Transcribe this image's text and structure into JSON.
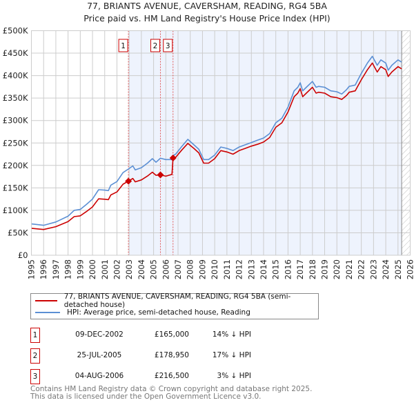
{
  "chart_data": {
    "type": "line",
    "title": "77, BRIANTS AVENUE, CAVERSHAM, READING, RG4 5BA",
    "subtitle": "Price paid vs. HM Land Registry's House Price Index (HPI)",
    "xlabel": "",
    "ylabel": "",
    "xlim": [
      1995,
      2026
    ],
    "ylim": [
      0,
      500000
    ],
    "grid": true,
    "x_ticks": [
      "1995",
      "1996",
      "1997",
      "1998",
      "1999",
      "2000",
      "2001",
      "2002",
      "2003",
      "2004",
      "2005",
      "2006",
      "2007",
      "2008",
      "2009",
      "2010",
      "2011",
      "2012",
      "2013",
      "2014",
      "2015",
      "2016",
      "2017",
      "2018",
      "2019",
      "2020",
      "2021",
      "2022",
      "2023",
      "2024",
      "2025",
      "2026"
    ],
    "y_ticks": [
      {
        "v": 0,
        "label": "£0"
      },
      {
        "v": 50000,
        "label": "£50K"
      },
      {
        "v": 100000,
        "label": "£100K"
      },
      {
        "v": 150000,
        "label": "£150K"
      },
      {
        "v": 200000,
        "label": "£200K"
      },
      {
        "v": 250000,
        "label": "£250K"
      },
      {
        "v": 300000,
        "label": "£300K"
      },
      {
        "v": 350000,
        "label": "£350K"
      },
      {
        "v": 400000,
        "label": "£400K"
      },
      {
        "v": 450000,
        "label": "£450K"
      },
      {
        "v": 500000,
        "label": "£500K"
      }
    ],
    "x": [
      1995,
      1996,
      1997,
      1998,
      1998.5,
      1999,
      1999.5,
      2000,
      2000.5,
      2001,
      2001.3,
      2001.5,
      2002,
      2002.5,
      2002.94,
      2003.3,
      2003.5,
      2004,
      2004.5,
      2004.9,
      2005.2,
      2005.56,
      2006,
      2006.5,
      2006.59,
      2006.8,
      2007.3,
      2007.8,
      2008.3,
      2008.7,
      2009.1,
      2009.5,
      2010,
      2010.5,
      2011,
      2011.5,
      2012,
      2012.5,
      2013,
      2013.5,
      2014,
      2014.5,
      2015,
      2015.5,
      2016,
      2016.5,
      2016.8,
      2017,
      2017.2,
      2017.5,
      2018,
      2018.3,
      2018.5,
      2019,
      2019.5,
      2020,
      2020.4,
      2020.8,
      2021,
      2021.5,
      2022,
      2022.5,
      2022.9,
      2023.3,
      2023.6,
      2024,
      2024.2,
      2024.5,
      2025,
      2025.3
    ],
    "series": [
      {
        "name": "77, BRIANTS AVENUE, CAVERSHAM, READING, RG4 5BA (semi-detached house)",
        "color": "#cc0000",
        "values": [
          60000,
          57300,
          63600,
          74800,
          86000,
          87700,
          97200,
          107500,
          125600,
          124700,
          123800,
          134200,
          141000,
          158200,
          165000,
          171000,
          163400,
          167700,
          176300,
          184900,
          178000,
          178950,
          176000,
          180000,
          216500,
          218000,
          234000,
          249000,
          238000,
          228000,
          205000,
          205000,
          215000,
          233000,
          230000,
          225000,
          233000,
          238000,
          243000,
          247000,
          252000,
          262000,
          285000,
          295000,
          319000,
          353000,
          361000,
          371000,
          353000,
          361000,
          374000,
          361000,
          363000,
          361000,
          353000,
          351000,
          347000,
          356000,
          363000,
          366000,
          391000,
          413000,
          428000,
          408000,
          420000,
          413000,
          398000,
          408000,
          420000,
          415000
        ]
      },
      {
        "name": "HPI: Average price, semi-detached house, Reading",
        "color": "#5b8fd4",
        "values": [
          69700,
          66600,
          74000,
          87000,
          100000,
          102000,
          113000,
          125000,
          146000,
          145000,
          144000,
          156000,
          164000,
          184000,
          192000,
          199000,
          190000,
          195000,
          205000,
          215000,
          207000,
          216000,
          213000,
          213000,
          222000,
          225000,
          242000,
          258000,
          246000,
          236000,
          213000,
          213000,
          223000,
          241000,
          238000,
          233000,
          241000,
          246000,
          251000,
          256000,
          261000,
          271000,
          295000,
          305000,
          330000,
          366000,
          374000,
          384000,
          366000,
          374000,
          387000,
          374000,
          376000,
          374000,
          366000,
          364000,
          359000,
          369000,
          376000,
          379000,
          405000,
          428000,
          443000,
          423000,
          435000,
          428000,
          412000,
          423000,
          435000,
          430000
        ]
      }
    ],
    "sales": [
      {
        "label": "1",
        "x": 2002.94,
        "price": 165000,
        "date": "09-DEC-2002",
        "price_text": "£165,000",
        "hpi_text": "14% ↓ HPI"
      },
      {
        "label": "2",
        "x": 2005.56,
        "price": 178950,
        "date": "25-JUL-2005",
        "price_text": "£178,950",
        "hpi_text": "17% ↓ HPI"
      },
      {
        "label": "3",
        "x": 2006.59,
        "price": 216500,
        "date": "04-AUG-2006",
        "price_text": "£216,500",
        "hpi_text": "3% ↓ HPI"
      }
    ],
    "shaded_from": 2002.94,
    "data_end": 2025.3,
    "legend_position": "bottom"
  },
  "footer": {
    "line1": "Contains HM Land Registry data © Crown copyright and database right 2025.",
    "line2": "This data is licensed under the Open Government Licence v3.0."
  }
}
